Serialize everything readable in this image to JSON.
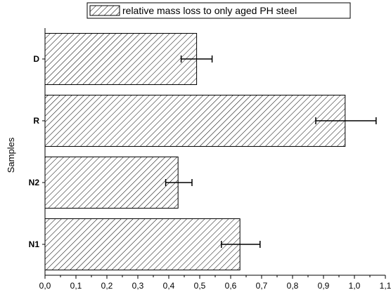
{
  "chart_data": {
    "type": "bar",
    "orientation": "horizontal",
    "title": "",
    "xlabel": "",
    "ylabel": "Samples",
    "xlim": [
      0.0,
      1.1
    ],
    "x_ticks": [
      "0,0",
      "0,1",
      "0,2",
      "0,3",
      "0,4",
      "0,5",
      "0,6",
      "0,7",
      "0,8",
      "0,9",
      "1,0",
      "1,1"
    ],
    "categories": [
      "D",
      "R",
      "N2",
      "N1"
    ],
    "series": [
      {
        "name": "relative mass loss to only aged PH steel",
        "values": [
          0.49,
          0.97,
          0.43,
          0.63
        ],
        "error_low": [
          0.44,
          0.875,
          0.39,
          0.57
        ],
        "error_high": [
          0.54,
          1.07,
          0.475,
          0.695
        ],
        "fill": "diagonal-hatch"
      }
    ],
    "legend_position": "top",
    "grid": false,
    "colors": {
      "bar_stroke": "#000000",
      "hatch": "#000000",
      "background": "#ffffff"
    }
  }
}
